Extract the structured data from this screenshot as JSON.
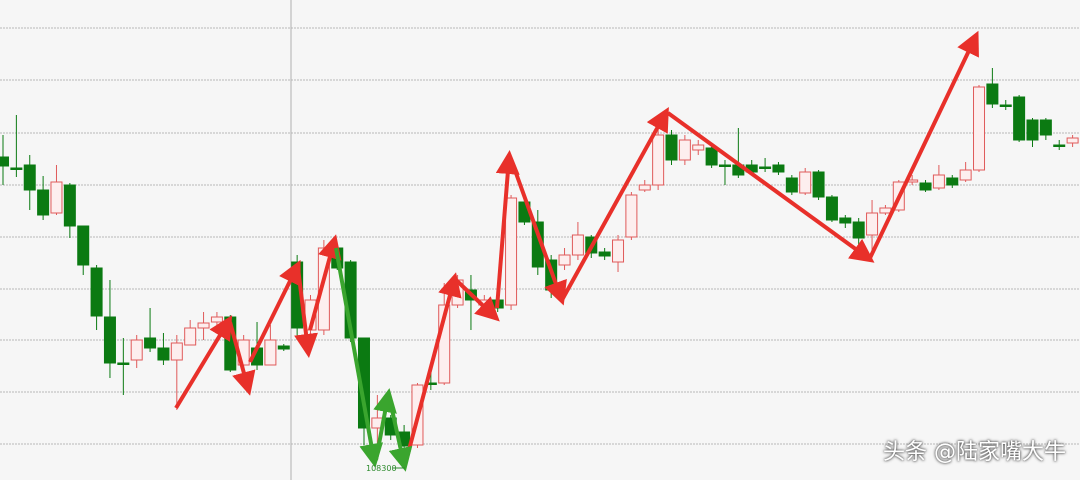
{
  "chart_data": {
    "type": "candlestick",
    "title": "",
    "xlabel": "",
    "ylabel": "",
    "grid": true,
    "colors": {
      "up": "#e05a5a",
      "up_fill": "#fdeeee",
      "down": "#0b7a12",
      "arrow": "#e8302a",
      "low_arrow": "#3aa52e",
      "grid": "#b8b8b8",
      "background": "#f6f6f6"
    },
    "candles_ohlc": [
      [
        323,
        314,
        345,
        295
      ],
      [
        312,
        312,
        365,
        303
      ],
      [
        315,
        290,
        325,
        270
      ],
      [
        290,
        265,
        304,
        260
      ],
      [
        267,
        298,
        315,
        265
      ],
      [
        295,
        254,
        297,
        242
      ],
      [
        254,
        215,
        254,
        205
      ],
      [
        212,
        164,
        215,
        150
      ],
      [
        163,
        117,
        200,
        102
      ],
      [
        117,
        117,
        142,
        85
      ],
      [
        120,
        140,
        145,
        112
      ],
      [
        142,
        132,
        172,
        128
      ],
      [
        132,
        120,
        147,
        115
      ],
      [
        120,
        137,
        145,
        70
      ],
      [
        135,
        152,
        160,
        135
      ],
      [
        152,
        157,
        168,
        140
      ],
      [
        158,
        163,
        168,
        150
      ],
      [
        163,
        110,
        165,
        108
      ],
      [
        115,
        140,
        145,
        110
      ],
      [
        132,
        115,
        158,
        110
      ],
      [
        115,
        140,
        155,
        115
      ],
      [
        134,
        131,
        136,
        129
      ],
      [
        218,
        152,
        225,
        140
      ],
      [
        150,
        180,
        185,
        145
      ],
      [
        150,
        232,
        240,
        145
      ],
      [
        232,
        212,
        235,
        210
      ],
      [
        218,
        142,
        220,
        138
      ],
      [
        142,
        52,
        142,
        35
      ],
      [
        52,
        62,
        85,
        30
      ],
      [
        62,
        45,
        65,
        40
      ],
      [
        48,
        34,
        55,
        30
      ],
      [
        35,
        95,
        97,
        32
      ],
      [
        97,
        97,
        110,
        90
      ],
      [
        97,
        175,
        197,
        95
      ],
      [
        175,
        200,
        205,
        172
      ],
      [
        190,
        180,
        205,
        150
      ],
      [
        175,
        180,
        185,
        170
      ],
      [
        180,
        172,
        182,
        168
      ],
      [
        175,
        282,
        285,
        170
      ],
      [
        278,
        258,
        282,
        255
      ],
      [
        258,
        213,
        270,
        205
      ],
      [
        220,
        190,
        225,
        182
      ],
      [
        215,
        225,
        232,
        210
      ],
      [
        225,
        245,
        258,
        220
      ],
      [
        243,
        227,
        245,
        222
      ],
      [
        228,
        224,
        232,
        220
      ],
      [
        218,
        240,
        245,
        208
      ],
      [
        243,
        285,
        288,
        240
      ],
      [
        290,
        295,
        300,
        288
      ],
      [
        295,
        345,
        355,
        290
      ],
      [
        345,
        320,
        350,
        315
      ],
      [
        320,
        340,
        345,
        315
      ],
      [
        330,
        335,
        340,
        325
      ],
      [
        332,
        315,
        335,
        312
      ],
      [
        315,
        315,
        320,
        295
      ],
      [
        315,
        305,
        352,
        302
      ],
      [
        315,
        308,
        320,
        305
      ],
      [
        313,
        313,
        322,
        308
      ],
      [
        315,
        308,
        318,
        305
      ],
      [
        302,
        288,
        305,
        285
      ],
      [
        287,
        308,
        312,
        285
      ],
      [
        308,
        283,
        310,
        280
      ],
      [
        283,
        260,
        285,
        258
      ],
      [
        262,
        257,
        265,
        252
      ],
      [
        258,
        242,
        262,
        235
      ],
      [
        245,
        267,
        280,
        225
      ],
      [
        267,
        272,
        275,
        265
      ],
      [
        270,
        298,
        300,
        268
      ],
      [
        298,
        300,
        305,
        295
      ],
      [
        297,
        290,
        300,
        288
      ],
      [
        292,
        305,
        315,
        290
      ],
      [
        302,
        295,
        305,
        292
      ],
      [
        300,
        310,
        318,
        298
      ],
      [
        310,
        393,
        395,
        308
      ],
      [
        396,
        376,
        412,
        372
      ],
      [
        375,
        375,
        380,
        370
      ],
      [
        383,
        340,
        385,
        338
      ],
      [
        360,
        340,
        362,
        333
      ],
      [
        360,
        345,
        362,
        340
      ],
      [
        335,
        335,
        340,
        330
      ],
      [
        337,
        342,
        345,
        333
      ]
    ],
    "annotations": {
      "low_label": "108300"
    }
  },
  "watermark": "头条 @陆家嘴大牛"
}
